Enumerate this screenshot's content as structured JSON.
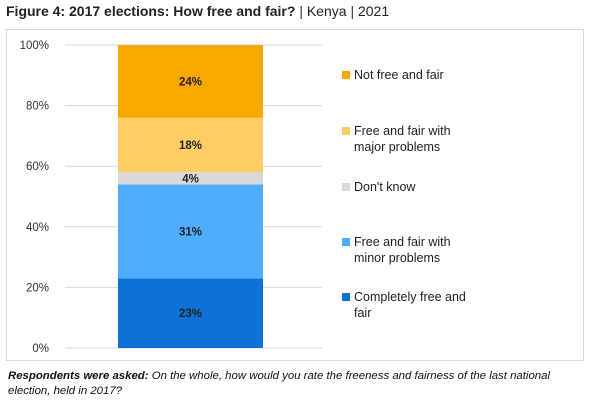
{
  "title": {
    "main": "Figure 4: 2017 elections: How free and fair?",
    "country": "Kenya",
    "year": "2021",
    "separator": "|"
  },
  "note": {
    "label": "Respondents were asked:",
    "text": "On the whole, how would you rate the freeness and fairness of the last national election, held in 2017?"
  },
  "chart_data": {
    "type": "bar",
    "stacked": true,
    "categories": [
      ""
    ],
    "ylim": [
      0,
      100
    ],
    "yticks": [
      "0%",
      "20%",
      "40%",
      "60%",
      "80%",
      "100%"
    ],
    "grid": true,
    "legend_position": "right",
    "series": [
      {
        "name": "Completely free and fair",
        "values": [
          23
        ],
        "label": "23%",
        "color": "#0c72d6"
      },
      {
        "name": "Free and fair with minor problems",
        "values": [
          31
        ],
        "label": "31%",
        "color": "#4eadfc"
      },
      {
        "name": "Don't know",
        "values": [
          4
        ],
        "label": "4%",
        "color": "#d9d9d9"
      },
      {
        "name": "Free and fair with major problems",
        "values": [
          18
        ],
        "label": "18%",
        "color": "#ffcc66"
      },
      {
        "name": "Not free and fair",
        "values": [
          24
        ],
        "label": "24%",
        "color": "#f9a800"
      }
    ]
  }
}
